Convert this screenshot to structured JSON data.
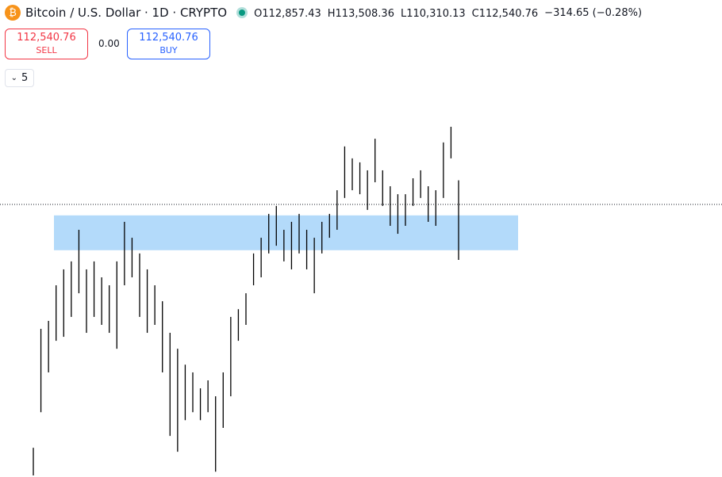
{
  "header": {
    "symbol": "Bitcoin / U.S. Dollar · 1D · CRYPTO",
    "ohlc": [
      {
        "label": "O",
        "value": "112,857.43"
      },
      {
        "label": "H",
        "value": "113,508.36"
      },
      {
        "label": "L",
        "value": "110,310.13"
      },
      {
        "label": "C",
        "value": "112,540.76"
      }
    ],
    "change": "−314.65 (−0.28%)"
  },
  "trade": {
    "sell_price": "112,540.76",
    "sell_label": "SELL",
    "spread": "0.00",
    "buy_price": "112,540.76",
    "buy_label": "BUY"
  },
  "indicators_toggle": "5",
  "chart_data": {
    "type": "ohlc",
    "color": "#000000",
    "zone_color": "#b3dafa",
    "high": [
      102760,
      107540,
      107860,
      109290,
      109930,
      110250,
      111520,
      109930,
      110250,
      109610,
      109290,
      110250,
      111840,
      111200,
      110570,
      109930,
      109290,
      108650,
      107380,
      106740,
      106100,
      105790,
      105150,
      105470,
      104830,
      105790,
      108020,
      108330,
      108970,
      110570,
      111200,
      112160,
      112480,
      111520,
      111840,
      112160,
      111520,
      111200,
      111840,
      112160,
      113110,
      114870,
      114390,
      114230,
      113910,
      115180,
      113910,
      113270,
      112950,
      112950,
      113590,
      113910,
      113270,
      113110,
      115030,
      115660,
      113508.36
    ],
    "low": [
      101650,
      104190,
      105790,
      107060,
      107220,
      108020,
      108970,
      107380,
      108020,
      107700,
      107380,
      106740,
      109290,
      109610,
      108020,
      107380,
      107700,
      105790,
      103240,
      102600,
      103870,
      104190,
      103870,
      104190,
      101800,
      103560,
      104830,
      107060,
      107700,
      109290,
      109610,
      110570,
      110880,
      110250,
      109930,
      110570,
      109930,
      108970,
      110570,
      111200,
      111520,
      112800,
      113110,
      112950,
      112320,
      113430,
      112480,
      111680,
      111360,
      111680,
      112480,
      112800,
      111840,
      111680,
      112800,
      114390,
      110310.13
    ],
    "last_close": 112540.76,
    "zone": {
      "top": 112100,
      "bottom": 110700
    }
  }
}
